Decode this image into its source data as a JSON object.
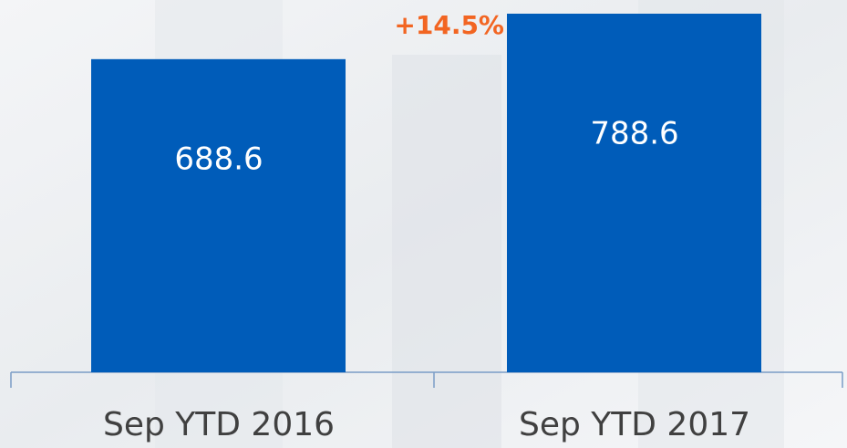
{
  "chart_data": {
    "type": "bar",
    "categories": [
      "Sep YTD 2016",
      "Sep YTD 2017"
    ],
    "values": [
      688.6,
      788.6
    ],
    "color": "#005cb9",
    "annotation": "+14.5%",
    "annotation_color": "#f26522"
  }
}
